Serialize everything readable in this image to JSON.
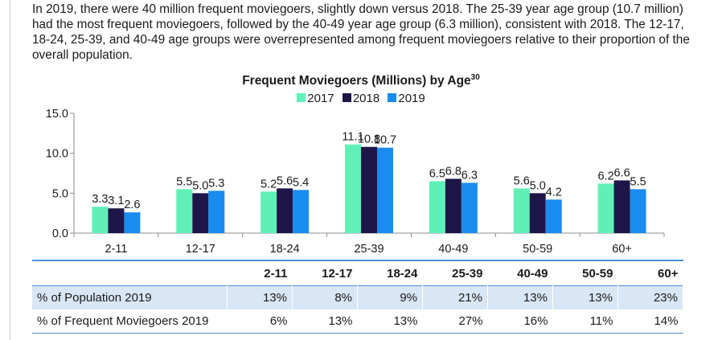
{
  "intro_text": "In 2019, there were 40 million frequent moviegoers, slightly down versus 2018. The 25-39 year age group (10.7 million) had the most frequent moviegoers, followed by the 40-49 year age group (6.3 million), consistent with 2018. The 12-17, 18-24, 25-39, and 40-49 age groups were overrepresented among frequent moviegoers relative to their proportion of the overall population.",
  "chart_data": {
    "type": "bar",
    "title": "Frequent Moviegoers (Millions) by Age",
    "title_footnote": "30",
    "categories": [
      "2-11",
      "12-17",
      "18-24",
      "25-39",
      "40-49",
      "50-59",
      "60+"
    ],
    "series": [
      {
        "name": "2017",
        "color": "#5ff0b8",
        "values": [
          3.3,
          5.5,
          5.2,
          11.1,
          6.5,
          5.6,
          6.2
        ]
      },
      {
        "name": "2018",
        "color": "#1e1648",
        "values": [
          3.1,
          5.0,
          5.6,
          10.8,
          6.8,
          5.0,
          6.6
        ]
      },
      {
        "name": "2019",
        "color": "#1a8cf0",
        "values": [
          2.6,
          5.3,
          5.4,
          10.7,
          6.3,
          4.2,
          5.5
        ]
      }
    ],
    "ylim": [
      0,
      15
    ],
    "yticks": [
      "0.0",
      "5.0",
      "10.0",
      "15.0"
    ],
    "ytick_values": [
      0,
      5,
      10,
      15
    ],
    "grid": false,
    "legend_position": "top-center"
  },
  "table": {
    "headers": [
      "",
      "2-11",
      "12-17",
      "18-24",
      "25-39",
      "40-49",
      "50-59",
      "60+"
    ],
    "rows": [
      {
        "label": "% of Population 2019",
        "values": [
          "13%",
          "8%",
          "9%",
          "21%",
          "13%",
          "13%",
          "23%"
        ]
      },
      {
        "label": "% of Frequent Moviegoers 2019",
        "values": [
          "6%",
          "13%",
          "13%",
          "27%",
          "16%",
          "11%",
          "14%"
        ]
      }
    ]
  }
}
